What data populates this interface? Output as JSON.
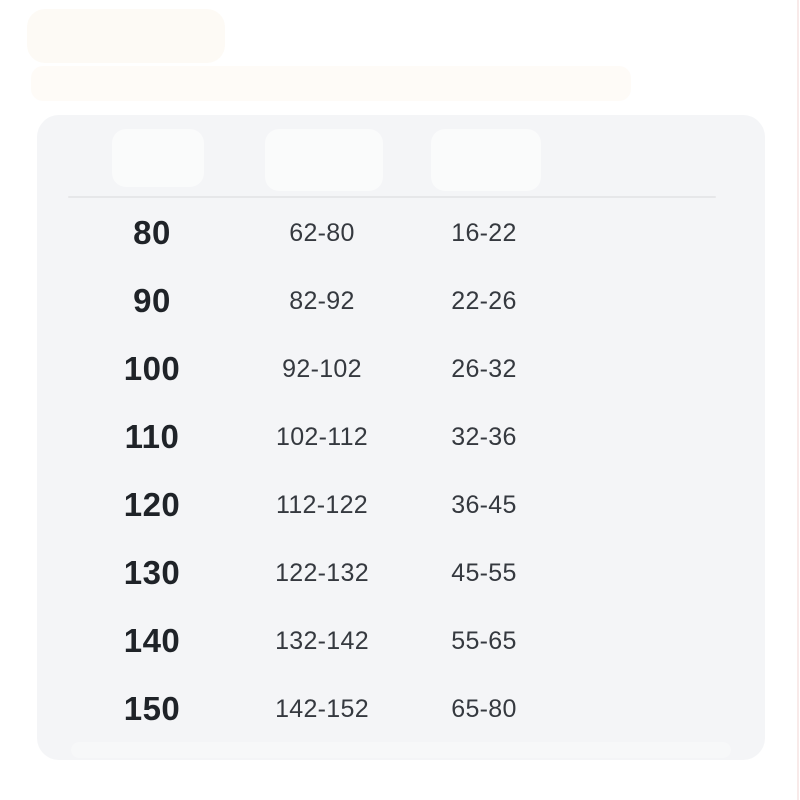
{
  "palette": {
    "page_background": "#ffffff",
    "card_background": "#f4f5f7",
    "divider": "#e6e7e9",
    "size_text": "#1f2328",
    "range_text": "#35393f",
    "faded_blob_cream": "#fdf9f3",
    "right_edge_line_pink": "#f6e5e3"
  },
  "size_chart": {
    "columns": [
      "size",
      "height_range",
      "weight_range"
    ],
    "rows": [
      {
        "size": "80",
        "height": "62-80",
        "weight": "16-22"
      },
      {
        "size": "90",
        "height": "82-92",
        "weight": "22-26"
      },
      {
        "size": "100",
        "height": "92-102",
        "weight": "26-32"
      },
      {
        "size": "110",
        "height": "102-112",
        "weight": "32-36"
      },
      {
        "size": "120",
        "height": "112-122",
        "weight": "36-45"
      },
      {
        "size": "130",
        "height": "122-132",
        "weight": "45-55"
      },
      {
        "size": "140",
        "height": "132-142",
        "weight": "55-65"
      },
      {
        "size": "150",
        "height": "142-152",
        "weight": "65-80"
      }
    ]
  }
}
